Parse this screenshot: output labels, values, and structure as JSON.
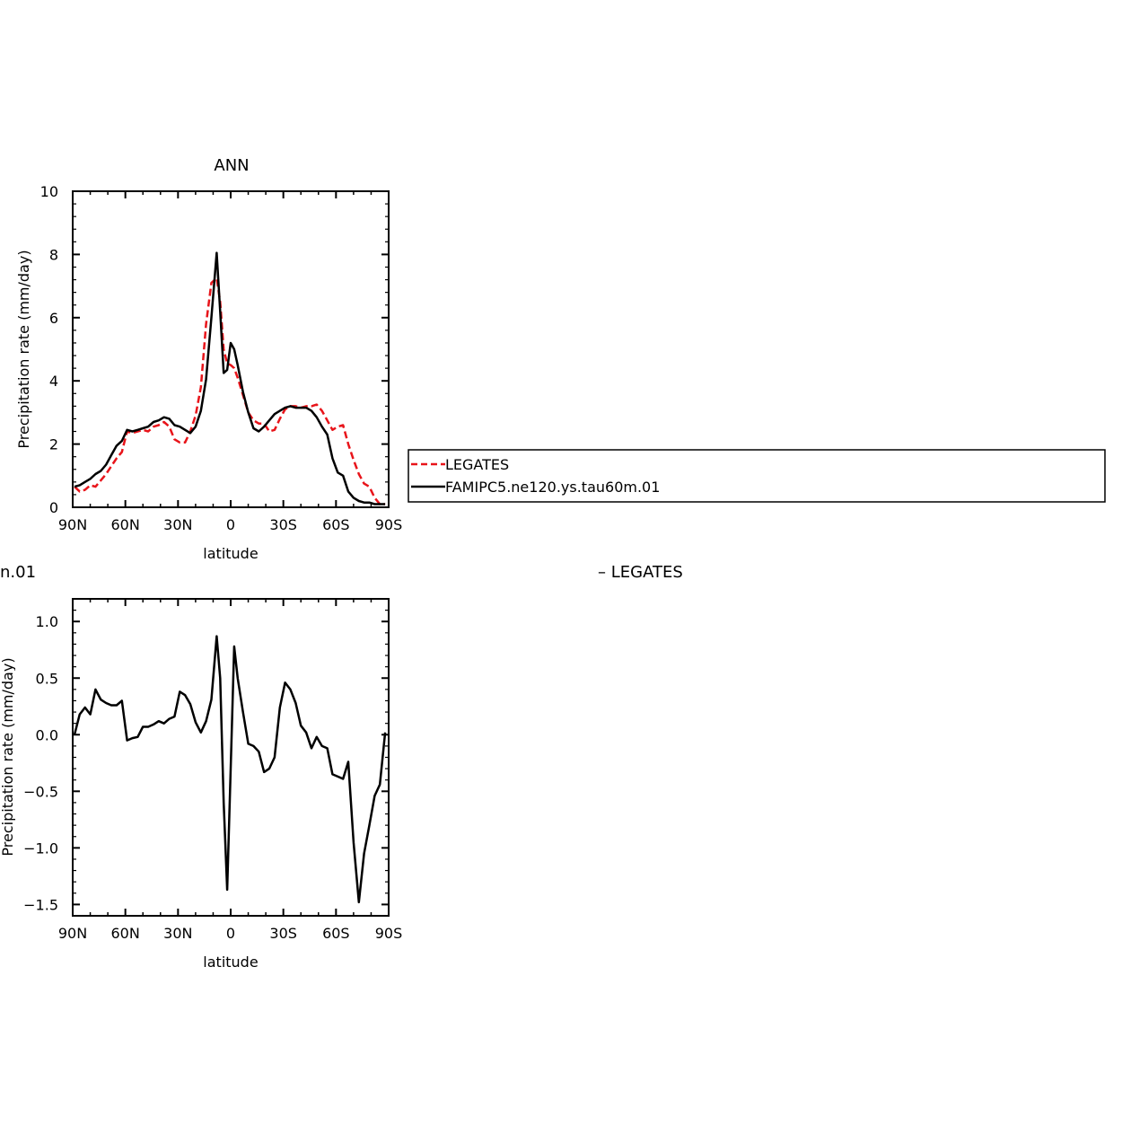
{
  "top_panel": {
    "title": "ANN",
    "ylabel": "Precipitation rate (mm/day)",
    "xlabel": "latitude",
    "legend": [
      "LEGATES",
      "FAMIPC5.ne120.ys.tau60m.01"
    ]
  },
  "bottom_panel": {
    "partial_title": "n.01",
    "partial_legend": "– LEGATES",
    "partial_ylabel": "Precipitation rate (mm/day)",
    "xlabel": "latitude"
  },
  "colors": {
    "legates": "#e8141a",
    "model": "#000000"
  },
  "chart_data": [
    {
      "type": "line",
      "title": "ANN",
      "xlabel": "latitude",
      "ylabel": "Precipitation rate (mm/day)",
      "xlim": [
        90,
        -90
      ],
      "ylim": [
        0,
        10
      ],
      "xticks": [
        90,
        60,
        30,
        0,
        -30,
        -60,
        -90
      ],
      "xticklabels": [
        "90N",
        "60N",
        "30N",
        "0",
        "30S",
        "60S",
        "90S"
      ],
      "yticks": [
        0,
        2,
        4,
        6,
        8,
        10
      ],
      "yticklabels": [
        "0",
        "2",
        "4",
        "6",
        "8",
        "10"
      ],
      "legend_position": "right",
      "series": [
        {
          "name": "LEGATES",
          "style": "dashed",
          "color": "#e8141a",
          "x": [
            89,
            86,
            83,
            80,
            77,
            74,
            71,
            68,
            65,
            62,
            59,
            56,
            53,
            50,
            47,
            44,
            41,
            38,
            35,
            32,
            29,
            26,
            23,
            20,
            17,
            14,
            11,
            8,
            6,
            4,
            2,
            0,
            -2,
            -4,
            -7,
            -10,
            -13,
            -16,
            -19,
            -22,
            -25,
            -28,
            -31,
            -34,
            -37,
            -40,
            -43,
            -46,
            -49,
            -52,
            -55,
            -58,
            -61,
            -64,
            -67,
            -70,
            -73,
            -76,
            -79,
            -82,
            -85,
            -88
          ],
          "y": [
            0.65,
            0.5,
            0.55,
            0.7,
            0.65,
            0.85,
            1.05,
            1.3,
            1.55,
            1.75,
            2.4,
            2.35,
            2.4,
            2.45,
            2.4,
            2.55,
            2.6,
            2.7,
            2.55,
            2.15,
            2.05,
            2.05,
            2.4,
            2.9,
            3.8,
            5.8,
            7.1,
            7.25,
            6.5,
            5.0,
            4.55,
            4.5,
            4.4,
            4.1,
            3.55,
            3.0,
            2.75,
            2.65,
            2.65,
            2.4,
            2.45,
            2.8,
            3.1,
            3.2,
            3.2,
            3.15,
            3.2,
            3.2,
            3.25,
            3.05,
            2.75,
            2.45,
            2.55,
            2.6,
            2.0,
            1.5,
            1.05,
            0.75,
            0.65,
            0.3,
            0.1,
            0.1
          ]
        },
        {
          "name": "FAMIPC5.ne120.ys.tau60m.01",
          "style": "solid",
          "color": "#000000",
          "x": [
            89,
            86,
            83,
            80,
            77,
            74,
            71,
            68,
            65,
            62,
            59,
            56,
            53,
            50,
            47,
            44,
            41,
            38,
            35,
            32,
            29,
            26,
            23,
            20,
            17,
            14,
            11,
            8,
            6,
            4,
            2,
            0,
            -2,
            -4,
            -7,
            -10,
            -13,
            -16,
            -19,
            -22,
            -25,
            -28,
            -31,
            -34,
            -37,
            -40,
            -43,
            -46,
            -49,
            -52,
            -55,
            -58,
            -61,
            -64,
            -67,
            -70,
            -73,
            -76,
            -79,
            -82,
            -85,
            -88
          ],
          "y": [
            0.65,
            0.7,
            0.8,
            0.9,
            1.05,
            1.15,
            1.35,
            1.65,
            1.95,
            2.1,
            2.45,
            2.4,
            2.45,
            2.5,
            2.55,
            2.7,
            2.75,
            2.85,
            2.8,
            2.6,
            2.55,
            2.45,
            2.35,
            2.55,
            3.05,
            4.05,
            6.0,
            8.05,
            6.2,
            4.25,
            4.35,
            5.2,
            5.0,
            4.5,
            3.65,
            3.0,
            2.5,
            2.4,
            2.55,
            2.75,
            2.95,
            3.05,
            3.15,
            3.2,
            3.15,
            3.15,
            3.15,
            3.05,
            2.85,
            2.55,
            2.3,
            1.55,
            1.1,
            1.0,
            0.5,
            0.3,
            0.2,
            0.15,
            0.15,
            0.1,
            0.1,
            0.1
          ]
        }
      ]
    },
    {
      "type": "line",
      "xlabel": "latitude",
      "xlim": [
        90,
        -90
      ],
      "ylim": [
        -1.6,
        1.2
      ],
      "xticks": [
        90,
        60,
        30,
        0,
        -30,
        -60,
        -90
      ],
      "xticklabels": [
        "90N",
        "60N",
        "30N",
        "0",
        "30S",
        "60S",
        "90S"
      ],
      "yticks": [
        1.0,
        0.5,
        0.0,
        -0.5,
        -1.0,
        -1.5
      ],
      "yticklabels": [
        "1.0",
        "0.5",
        "0.0",
        "−0.5",
        "−1.0",
        "−1.5"
      ],
      "series": [
        {
          "style": "solid",
          "color": "#000000",
          "x": [
            89,
            86,
            83,
            80,
            77,
            74,
            71,
            68,
            65,
            62,
            59,
            56,
            53,
            50,
            47,
            44,
            41,
            38,
            35,
            32,
            29,
            26,
            23,
            20,
            17,
            14,
            11,
            8,
            6,
            4,
            2,
            0,
            -2,
            -4,
            -7,
            -10,
            -13,
            -16,
            -19,
            -22,
            -25,
            -28,
            -31,
            -34,
            -37,
            -40,
            -43,
            -46,
            -49,
            -52,
            -55,
            -58,
            -61,
            -64,
            -67,
            -70,
            -73,
            -76,
            -79,
            -82,
            -85,
            -88
          ],
          "y": [
            0.0,
            0.18,
            0.24,
            0.18,
            0.4,
            0.31,
            0.28,
            0.26,
            0.26,
            0.3,
            -0.05,
            -0.03,
            -0.02,
            0.07,
            0.07,
            0.09,
            0.12,
            0.1,
            0.14,
            0.16,
            0.38,
            0.35,
            0.27,
            0.11,
            0.02,
            0.12,
            0.31,
            0.87,
            0.5,
            -0.6,
            -1.37,
            -0.3,
            0.78,
            0.5,
            0.2,
            -0.08,
            -0.1,
            -0.15,
            -0.33,
            -0.3,
            -0.2,
            0.24,
            0.46,
            0.4,
            0.28,
            0.08,
            0.02,
            -0.12,
            -0.02,
            -0.1,
            -0.12,
            -0.35,
            -0.37,
            -0.39,
            -0.24,
            -0.95,
            -1.48,
            -1.05,
            -0.8,
            -0.54,
            -0.44,
            0.02
          ]
        }
      ]
    }
  ]
}
